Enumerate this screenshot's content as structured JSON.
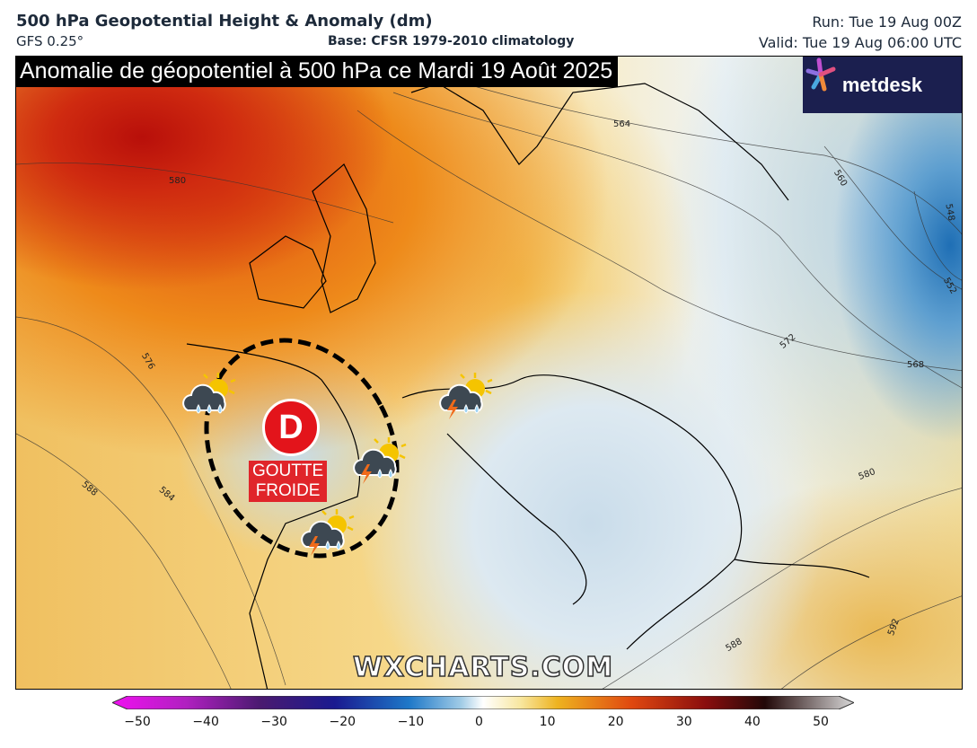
{
  "header": {
    "title": "500 hPa Geopotential Height & Anomaly (dm)",
    "model": "GFS 0.25°",
    "base": "Base: CFSR 1979-2010 climatology",
    "run": "Run: Tue 19 Aug 00Z",
    "valid": "Valid: Tue 19 Aug 06:00 UTC"
  },
  "banner": "Anomalie de géopotentiel à 500 hPa ce Mardi 19 Août 2025",
  "logo": "metdesk",
  "contour_labels": [
    "580",
    "576",
    "588",
    "584",
    "564",
    "560",
    "548",
    "552",
    "572",
    "568",
    "580",
    "588",
    "592"
  ],
  "marker": {
    "letter": "D",
    "label_line1": "GOUTTE",
    "label_line2": "FROIDE",
    "color": "#e3141b"
  },
  "weather_icons": [
    "sun-cloud-rain",
    "sun-cloud-storm-rain",
    "sun-cloud-storm-rain",
    "sun-cloud-storm-rain"
  ],
  "watermark": "WXCHARTS.COM",
  "colorbar": {
    "ticks": [
      "−50",
      "−40",
      "−30",
      "−20",
      "−10",
      "0",
      "10",
      "20",
      "30",
      "40",
      "50"
    ]
  }
}
